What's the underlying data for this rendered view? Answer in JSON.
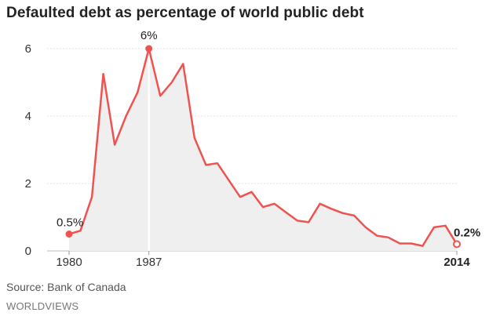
{
  "title": "Defaulted debt as percentage of world public debt",
  "source": "Source: Bank of Canada",
  "brand": "WORLDVIEWS",
  "colors": {
    "line": "#ef5350",
    "area": "#efefef",
    "grid": "#dddddd",
    "highlight": "#ffffff"
  },
  "chart_data": {
    "type": "area",
    "x": [
      1980,
      1981,
      1982,
      1983,
      1984,
      1985,
      1986,
      1987,
      1988,
      1989,
      1990,
      1991,
      1992,
      1993,
      1994,
      1995,
      1996,
      1997,
      1998,
      1999,
      2000,
      2001,
      2002,
      2003,
      2004,
      2005,
      2006,
      2007,
      2008,
      2009,
      2010,
      2011,
      2012,
      2013,
      2014
    ],
    "values": [
      0.5,
      0.6,
      1.6,
      5.25,
      3.15,
      4.0,
      4.7,
      6.0,
      4.6,
      5.0,
      5.55,
      3.35,
      2.55,
      2.6,
      2.1,
      1.6,
      1.75,
      1.3,
      1.4,
      1.15,
      0.9,
      0.85,
      1.4,
      1.25,
      1.12,
      1.05,
      0.7,
      0.45,
      0.4,
      0.22,
      0.22,
      0.15,
      0.7,
      0.75,
      0.2
    ],
    "ylim": [
      0,
      6
    ],
    "y_ticks": [
      "0",
      "2",
      "4",
      "6"
    ],
    "y_tick_values": [
      0,
      2,
      4,
      6
    ],
    "x_tick_labels": [
      "1980",
      "1987",
      "2014"
    ],
    "x_tick_values": [
      1980,
      1987,
      2014
    ],
    "annotations": [
      {
        "x": 1980,
        "y": 0.5,
        "label": "0.5%"
      },
      {
        "x": 1987,
        "y": 6.0,
        "label": "6%"
      },
      {
        "x": 2014,
        "y": 0.2,
        "label": "0.2%"
      }
    ],
    "highlight_year": 1987,
    "grid": true
  }
}
